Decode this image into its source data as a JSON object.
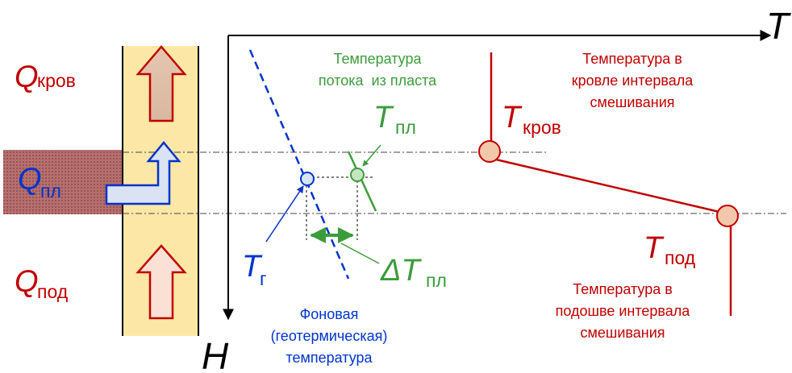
{
  "left_labels": {
    "q_roof": {
      "symbol": "Q",
      "subscript": "кров"
    },
    "q_layer": {
      "symbol": "Q",
      "subscript": "пл"
    },
    "q_bottom": {
      "symbol": "Q",
      "subscript": "под"
    }
  },
  "axes": {
    "x": "T",
    "y": "H"
  },
  "annotations": {
    "layer_flow_caption": [
      "Температура",
      "потока  из пласта"
    ],
    "t_layer": {
      "symbol": "T",
      "subscript": "пл"
    },
    "roof_caption": [
      "Температура в",
      "кровле интервала",
      "смешивания"
    ],
    "t_roof": {
      "symbol": "T",
      "subscript": "кров"
    },
    "t_geo": {
      "symbol": "T",
      "subscript": "г"
    },
    "delta_t_layer": {
      "symbol": "ΔT",
      "subscript": "пл"
    },
    "t_bottom": {
      "symbol": "T",
      "subscript": "под"
    },
    "bottom_caption": [
      "Температура в",
      "подошве интервала",
      "смешивания"
    ],
    "background_caption": [
      "Фоновая",
      "(геотермическая)",
      "температура"
    ]
  }
}
